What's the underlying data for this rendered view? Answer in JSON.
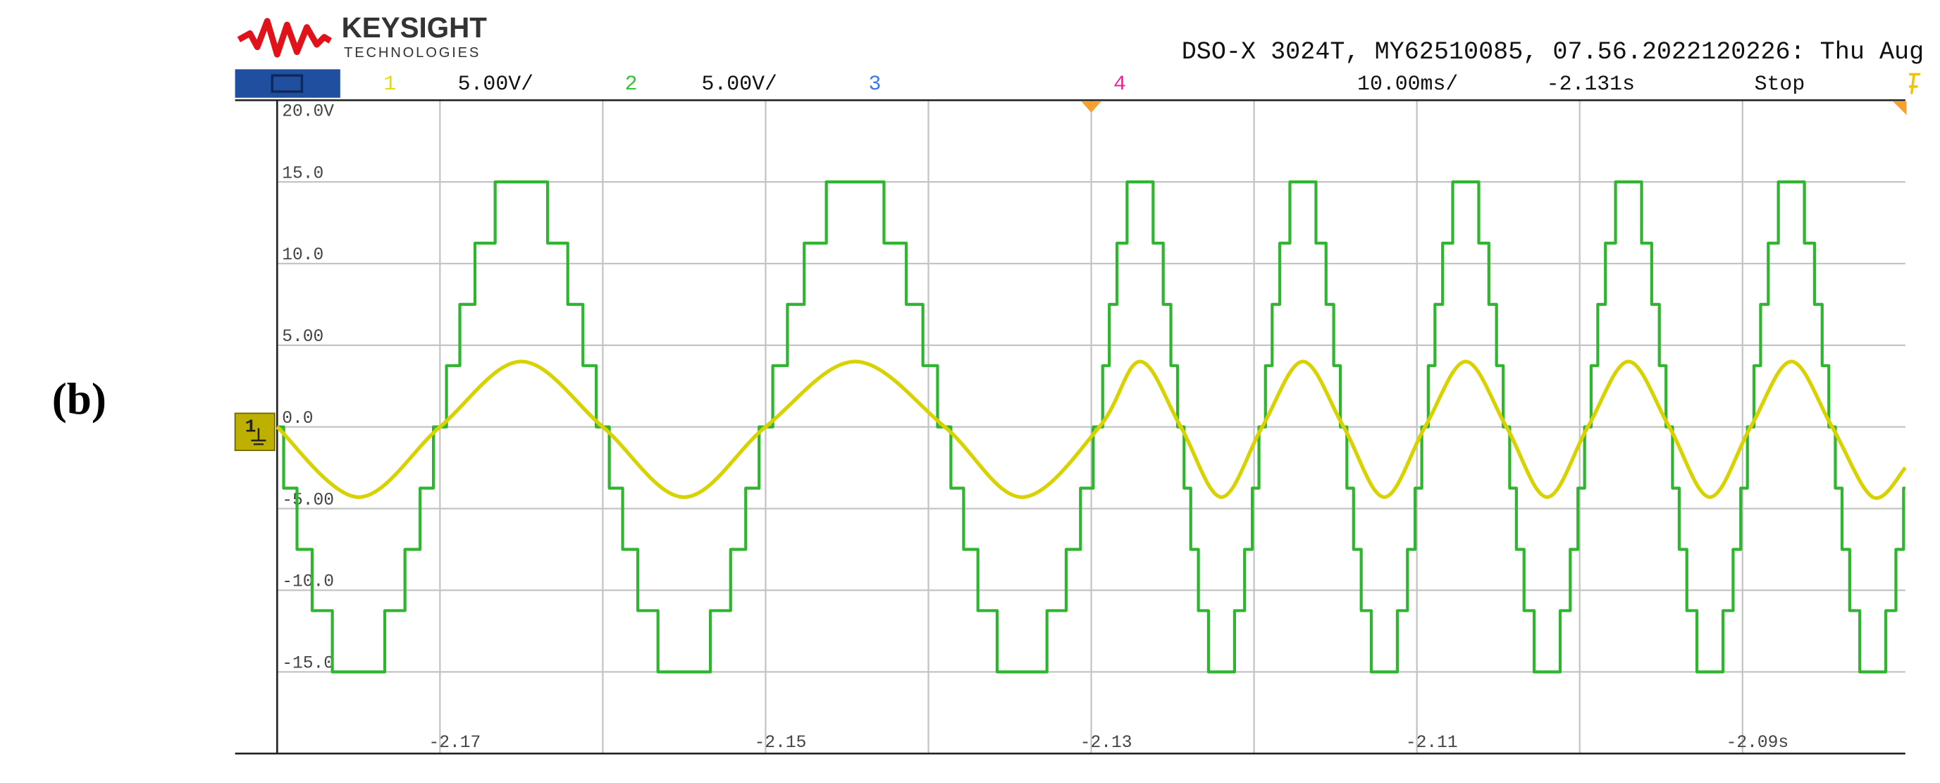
{
  "panel_label": "(b)",
  "header": {
    "brand": "KEYSIGHT",
    "brand_sub": "TECHNOLOGIES",
    "instrument": "DSO-X 3024T, MY62510085, 07.56.2022120226: Thu Aug",
    "channels": [
      {
        "number": "1",
        "scale": "5.00V/",
        "color": "#e6dc00"
      },
      {
        "number": "2",
        "scale": "5.00V/",
        "color": "#33c433"
      },
      {
        "number": "3",
        "color": "#3a78f0"
      },
      {
        "number": "4",
        "color": "#f0209a"
      }
    ],
    "timebase": "10.00ms/",
    "delay": "-2.131s",
    "status": "Stop"
  },
  "chart_data": {
    "type": "line",
    "xlim": [
      -2.18,
      -2.08
    ],
    "ylim": [
      -20,
      20
    ],
    "xticks": [
      -2.17,
      -2.15,
      -2.13,
      -2.11,
      {
        "value": -2.09,
        "label": "-2.09s"
      }
    ],
    "x_gridlines": [
      -2.16,
      -2.14,
      -2.12,
      -2.1
    ],
    "yticks": [
      {
        "value": 20,
        "label": "20.0V"
      },
      {
        "value": 15,
        "label": "15.0"
      },
      {
        "value": 10,
        "label": "10.0"
      },
      {
        "value": 5,
        "label": "5.00"
      },
      {
        "value": 0,
        "label": "0.0"
      },
      {
        "value": -5,
        "label": "-5.00"
      },
      {
        "value": -10,
        "label": "-10.0"
      },
      {
        "value": -15,
        "label": "-15.0"
      }
    ],
    "grid": true,
    "series": [
      {
        "color": "#2fb52f",
        "line_style": "steps-post",
        "x": [
          -2.18,
          -2.1796,
          -2.17878,
          -2.17785,
          -2.17661,
          -2.17339,
          -2.17215,
          -2.17122,
          -2.1704,
          -2.1696,
          -2.16878,
          -2.16785,
          -2.16661,
          -2.16339,
          -2.16215,
          -2.16122,
          -2.1604,
          -2.1596,
          -2.15878,
          -2.15785,
          -2.15661,
          -2.15339,
          -2.15215,
          -2.15122,
          -2.1504,
          -2.14956,
          -2.14866,
          -2.14763,
          -2.14627,
          -2.14273,
          -2.14136,
          -2.14034,
          -2.13944,
          -2.13862,
          -2.13784,
          -2.13696,
          -2.13578,
          -2.13272,
          -2.13154,
          -2.13066,
          -2.12988,
          -2.1293,
          -2.12889,
          -2.12842,
          -2.1278,
          -2.1262,
          -2.12558,
          -2.12511,
          -2.1247,
          -2.1243,
          -2.12389,
          -2.12342,
          -2.1228,
          -2.1212,
          -2.12058,
          -2.12011,
          -2.1197,
          -2.1193,
          -2.11889,
          -2.11842,
          -2.1178,
          -2.1162,
          -2.11558,
          -2.11511,
          -2.1147,
          -2.1143,
          -2.11389,
          -2.11342,
          -2.1128,
          -2.1112,
          -2.11058,
          -2.11011,
          -2.1097,
          -2.1093,
          -2.10889,
          -2.10842,
          -2.1078,
          -2.1062,
          -2.10558,
          -2.10511,
          -2.1047,
          -2.1043,
          -2.10389,
          -2.10342,
          -2.1028,
          -2.1012,
          -2.10058,
          -2.10011,
          -2.0997,
          -2.0993,
          -2.09889,
          -2.09842,
          -2.0978,
          -2.0962,
          -2.09558,
          -2.09511,
          -2.0947,
          -2.0943,
          -2.09389,
          -2.09342,
          -2.0928,
          -2.0912,
          -2.09058,
          -2.09011,
          -2.0897,
          -2.0893,
          -2.08889,
          -2.08842,
          -2.0878,
          -2.0862,
          -2.08558,
          -2.08511,
          -2.0847,
          -2.0843,
          -2.08389,
          -2.08342,
          -2.0828,
          -2.0812,
          -2.08058,
          -2.08011,
          -2.08
        ],
        "values": [
          0,
          -3.75,
          -7.5,
          -11.25,
          -15,
          -11.25,
          -7.5,
          -3.75,
          0,
          3.75,
          7.5,
          11.25,
          15,
          11.25,
          7.5,
          3.75,
          0,
          -3.75,
          -7.5,
          -11.25,
          -15,
          -11.25,
          -7.5,
          -3.75,
          0,
          3.75,
          7.5,
          11.25,
          15,
          11.25,
          7.5,
          3.75,
          0,
          -3.75,
          -7.5,
          -11.25,
          -15,
          -11.25,
          -7.5,
          -3.75,
          0,
          3.75,
          7.5,
          11.25,
          15,
          11.25,
          7.5,
          3.75,
          0,
          -3.75,
          -7.5,
          -11.25,
          -15,
          -11.25,
          -7.5,
          -3.75,
          0,
          3.75,
          7.5,
          11.25,
          15,
          11.25,
          7.5,
          3.75,
          0,
          -3.75,
          -7.5,
          -11.25,
          -15,
          -11.25,
          -7.5,
          -3.75,
          0,
          3.75,
          7.5,
          11.25,
          15,
          11.25,
          7.5,
          3.75,
          0,
          -3.75,
          -7.5,
          -11.25,
          -15,
          -11.25,
          -7.5,
          -3.75,
          0,
          3.75,
          7.5,
          11.25,
          15,
          11.25,
          7.5,
          3.75,
          0,
          -3.75,
          -7.5,
          -11.25,
          -15,
          -11.25,
          -7.5,
          -3.75,
          0,
          3.75,
          7.5,
          11.25,
          15,
          11.25,
          7.5,
          3.75,
          0,
          -3.75,
          -7.5,
          -11.25,
          -15,
          -11.25,
          -7.5,
          -3.75,
          -3.75
        ]
      },
      {
        "color": "#d8d200",
        "line_style": "smooth",
        "x": [
          -2.18,
          -2.175,
          -2.17,
          -2.165,
          -2.16,
          -2.155,
          -2.15,
          -2.1445,
          -2.139,
          -2.13425,
          -2.1295,
          -2.127,
          -2.1245,
          -2.122,
          -2.1195,
          -2.117,
          -2.1145,
          -2.112,
          -2.1095,
          -2.107,
          -2.1045,
          -2.102,
          -2.0995,
          -2.097,
          -2.0945,
          -2.092,
          -2.0895,
          -2.087,
          -2.0845,
          -2.082,
          -2.08
        ],
        "values": [
          0,
          -4.3,
          0,
          4,
          0,
          -4.3,
          0,
          4,
          0,
          -4.3,
          0,
          4,
          0,
          -4.3,
          0,
          4,
          0,
          -4.3,
          0,
          4,
          0,
          -4.3,
          0,
          4,
          0,
          -4.3,
          0,
          4,
          0,
          -4.3,
          -2.5
        ]
      }
    ]
  }
}
